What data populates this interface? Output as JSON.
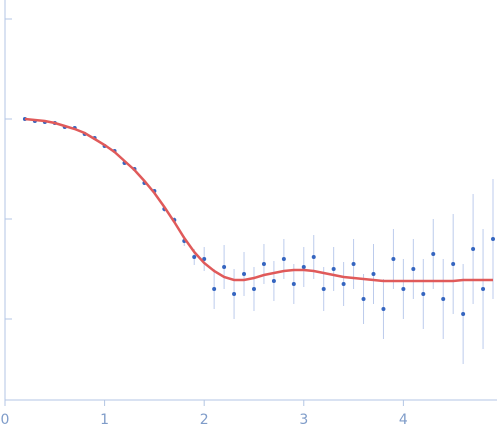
{
  "chart_data": {
    "type": "scatter",
    "x": [
      0.2,
      0.3,
      0.4,
      0.5,
      0.6,
      0.7,
      0.8,
      0.9,
      1.0,
      1.1,
      1.2,
      1.3,
      1.4,
      1.5,
      1.6,
      1.7,
      1.8,
      1.9,
      2.0,
      2.1,
      2.2,
      2.3,
      2.4,
      2.5,
      2.6,
      2.7,
      2.8,
      2.9,
      3.0,
      3.1,
      3.2,
      3.3,
      3.4,
      3.5,
      3.6,
      3.7,
      3.8,
      3.9,
      4.0,
      4.1,
      4.2,
      4.3,
      4.4,
      4.5,
      4.6,
      4.7,
      4.8,
      4.9
    ],
    "series": [
      {
        "kind": "points",
        "color": "#3565c0",
        "error_color": "#bccbec",
        "values": [
          3.0,
          2.98,
          2.97,
          2.96,
          2.92,
          2.91,
          2.85,
          2.81,
          2.73,
          2.68,
          2.56,
          2.5,
          2.36,
          2.28,
          2.1,
          1.99,
          1.78,
          1.62,
          1.6,
          1.3,
          1.52,
          1.25,
          1.45,
          1.3,
          1.55,
          1.38,
          1.6,
          1.35,
          1.52,
          1.62,
          1.3,
          1.5,
          1.35,
          1.55,
          1.2,
          1.45,
          1.1,
          1.6,
          1.3,
          1.5,
          1.25,
          1.65,
          1.2,
          1.55,
          1.05,
          1.7,
          1.3,
          1.8
        ],
        "errors": [
          0.01,
          0.01,
          0.01,
          0.01,
          0.01,
          0.01,
          0.01,
          0.01,
          0.01,
          0.02,
          0.02,
          0.02,
          0.02,
          0.02,
          0.03,
          0.03,
          0.05,
          0.08,
          0.12,
          0.2,
          0.22,
          0.25,
          0.22,
          0.22,
          0.2,
          0.2,
          0.2,
          0.2,
          0.2,
          0.22,
          0.22,
          0.22,
          0.22,
          0.25,
          0.25,
          0.3,
          0.3,
          0.3,
          0.3,
          0.3,
          0.35,
          0.35,
          0.4,
          0.5,
          0.5,
          0.55,
          0.6,
          0.6
        ]
      },
      {
        "kind": "fit",
        "color": "#e05a5a",
        "values": [
          3.0,
          2.99,
          2.98,
          2.96,
          2.93,
          2.9,
          2.86,
          2.8,
          2.74,
          2.67,
          2.58,
          2.49,
          2.38,
          2.26,
          2.12,
          1.97,
          1.81,
          1.67,
          1.56,
          1.48,
          1.42,
          1.39,
          1.39,
          1.41,
          1.44,
          1.46,
          1.48,
          1.49,
          1.49,
          1.48,
          1.46,
          1.44,
          1.42,
          1.41,
          1.4,
          1.39,
          1.38,
          1.38,
          1.38,
          1.38,
          1.38,
          1.38,
          1.38,
          1.38,
          1.39,
          1.39,
          1.39,
          1.39
        ]
      }
    ],
    "xlim": [
      0,
      4.92
    ],
    "xticks": [
      0,
      1,
      2,
      3,
      4
    ],
    "ylim": [
      0.19,
      4.19
    ],
    "yticks": [
      1,
      2,
      3,
      4
    ]
  }
}
